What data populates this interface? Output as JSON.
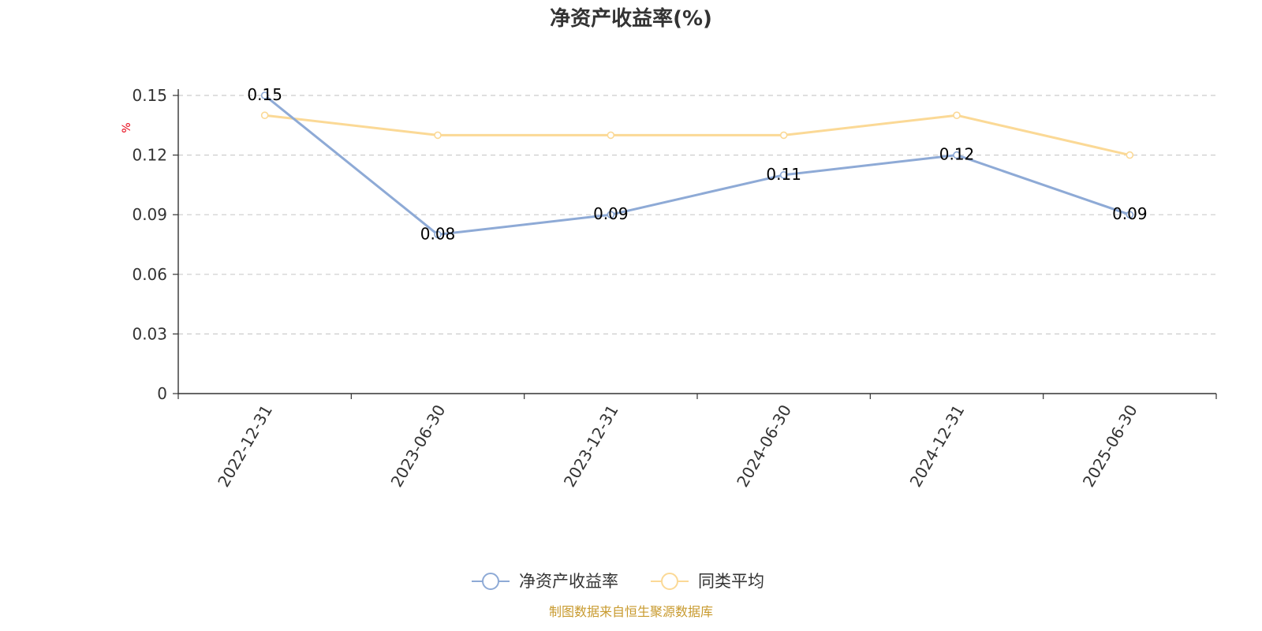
{
  "chart_data": {
    "type": "line",
    "title": "净资产收益率(%)",
    "y_unit": "%",
    "categories": [
      "2022-12-31",
      "2023-06-30",
      "2023-12-31",
      "2024-06-30",
      "2024-12-31",
      "2025-06-30"
    ],
    "series": [
      {
        "name": "净资产收益率",
        "color": "#8eaad6",
        "values": [
          0.15,
          0.08,
          0.09,
          0.11,
          0.12,
          0.09
        ],
        "data_labels": [
          "0.15",
          "0.08",
          "0.09",
          "0.11",
          "0.12",
          "0.09"
        ],
        "show_labels": true
      },
      {
        "name": "同类平均",
        "color": "#fbd996",
        "values": [
          0.14,
          0.13,
          0.13,
          0.13,
          0.14,
          0.12
        ],
        "show_labels": false
      }
    ],
    "ylim": [
      0,
      0.15
    ],
    "yticks": [
      0,
      0.03,
      0.06,
      0.09,
      0.12,
      0.15
    ],
    "ytick_labels": [
      "0",
      "0.03",
      "0.06",
      "0.09",
      "0.12",
      "0.15"
    ],
    "grid": true,
    "legend_position": "bottom-center"
  },
  "footer": {
    "source": "制图数据来自恒生聚源数据库"
  }
}
